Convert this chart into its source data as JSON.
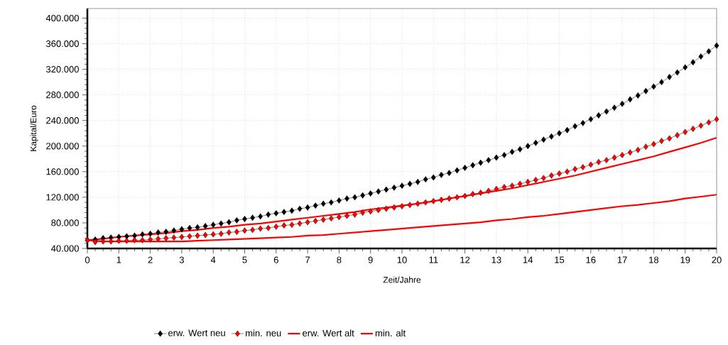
{
  "chart_data": {
    "type": "line",
    "xlabel": "Zeit/Jahre",
    "ylabel": "Kapital/Euro",
    "xlim": [
      0,
      20
    ],
    "ylim": [
      40000,
      415000
    ],
    "xticks": [
      0,
      1,
      2,
      3,
      4,
      5,
      6,
      7,
      8,
      9,
      10,
      11,
      12,
      13,
      14,
      15,
      16,
      17,
      18,
      19,
      20
    ],
    "yticks": [
      {
        "value": 40000,
        "label": "40.000"
      },
      {
        "value": 80000,
        "label": "80.000"
      },
      {
        "value": 120000,
        "label": "120.000"
      },
      {
        "value": 160000,
        "label": "160.000"
      },
      {
        "value": 200000,
        "label": "200.000"
      },
      {
        "value": 240000,
        "label": "240.000"
      },
      {
        "value": 280000,
        "label": "280.000"
      },
      {
        "value": 320000,
        "label": "320.000"
      },
      {
        "value": 360000,
        "label": "360.000"
      },
      {
        "value": 400000,
        "label": "400.000"
      }
    ],
    "grid": true,
    "legend": "bottom",
    "series": [
      {
        "name": "erw. Wert neu",
        "color": "#000000",
        "marker": "diamond",
        "x": [
          0,
          0.25,
          0.5,
          0.75,
          1,
          1.25,
          1.5,
          1.75,
          2,
          2.25,
          2.5,
          2.75,
          3,
          3.25,
          3.5,
          3.75,
          4,
          4.25,
          4.5,
          4.75,
          5,
          5.25,
          5.5,
          5.75,
          6,
          6.25,
          6.5,
          6.75,
          7,
          7.25,
          7.5,
          7.75,
          8,
          8.25,
          8.5,
          8.75,
          9,
          9.25,
          9.5,
          9.75,
          10,
          10.25,
          10.5,
          10.75,
          11,
          11.25,
          11.5,
          11.75,
          12,
          12.25,
          12.5,
          12.75,
          13,
          13.25,
          13.5,
          13.75,
          14,
          14.25,
          14.5,
          14.75,
          15,
          15.25,
          15.5,
          15.75,
          16,
          16.25,
          16.5,
          16.75,
          17,
          17.25,
          17.5,
          17.75,
          18,
          18.25,
          18.5,
          18.75,
          19,
          19.25,
          19.5,
          19.75,
          20
        ],
        "values": [
          53000,
          54000,
          56000,
          57000,
          58000,
          59000,
          60000,
          62000,
          63000,
          65000,
          66000,
          68000,
          70000,
          72000,
          73000,
          75000,
          77000,
          79000,
          81000,
          84000,
          86000,
          88000,
          90000,
          93000,
          95000,
          97000,
          99000,
          102000,
          104000,
          107000,
          110000,
          112000,
          115000,
          118000,
          120000,
          123000,
          126000,
          129000,
          132000,
          135000,
          138000,
          141000,
          144000,
          148000,
          151000,
          155000,
          158000,
          162000,
          166000,
          170000,
          174000,
          178000,
          182000,
          186000,
          191000,
          195000,
          200000,
          205000,
          210000,
          215000,
          220000,
          225000,
          231000,
          236000,
          242000,
          248000,
          254000,
          260000,
          266000,
          273000,
          279000,
          286000,
          293000,
          300000,
          308000,
          315000,
          323000,
          331000,
          340000,
          348000,
          357000
        ]
      },
      {
        "name": "min. neu",
        "color": "#ff0000",
        "marker": "diamond",
        "x": [
          0,
          0.25,
          0.5,
          0.75,
          1,
          1.25,
          1.5,
          1.75,
          2,
          2.25,
          2.5,
          2.75,
          3,
          3.25,
          3.5,
          3.75,
          4,
          4.25,
          4.5,
          4.75,
          5,
          5.25,
          5.5,
          5.75,
          6,
          6.25,
          6.5,
          6.75,
          7,
          7.25,
          7.5,
          7.75,
          8,
          8.25,
          8.5,
          8.75,
          9,
          9.25,
          9.5,
          9.75,
          10,
          10.25,
          10.5,
          10.75,
          11,
          11.25,
          11.5,
          11.75,
          12,
          12.25,
          12.5,
          12.75,
          13,
          13.25,
          13.5,
          13.75,
          14,
          14.25,
          14.5,
          14.75,
          15,
          15.25,
          15.5,
          15.75,
          16,
          16.25,
          16.5,
          16.75,
          17,
          17.25,
          17.5,
          17.75,
          18,
          18.25,
          18.5,
          18.75,
          19,
          19.25,
          19.5,
          19.75,
          20
        ],
        "values": [
          53000,
          50000,
          51000,
          51000,
          52000,
          52000,
          53000,
          53000,
          54000,
          55000,
          56000,
          57000,
          58000,
          59000,
          60000,
          61000,
          62000,
          63000,
          65000,
          66000,
          68000,
          69000,
          71000,
          72000,
          74000,
          76000,
          77000,
          79000,
          81000,
          83000,
          85000,
          87000,
          89000,
          91000,
          93000,
          96000,
          98000,
          100000,
          102000,
          104000,
          106000,
          108000,
          110000,
          112000,
          114000,
          116000,
          118000,
          120000,
          122000,
          125000,
          127000,
          130000,
          133000,
          136000,
          138000,
          141000,
          144000,
          147000,
          150000,
          154000,
          157000,
          160000,
          164000,
          167000,
          171000,
          175000,
          178000,
          182000,
          186000,
          190000,
          194000,
          199000,
          203000,
          208000,
          212000,
          217000,
          222000,
          227000,
          232000,
          237000,
          242000
        ]
      },
      {
        "name": "erw. Wert alt",
        "color": "#ff0000",
        "marker": "none",
        "x": [
          0,
          0.5,
          1,
          1.5,
          2,
          2.5,
          3,
          3.5,
          4,
          4.5,
          5,
          5.5,
          6,
          6.5,
          7,
          7.5,
          8,
          8.5,
          9,
          9.5,
          10,
          10.5,
          11,
          11.5,
          12,
          12.5,
          13,
          13.5,
          14,
          14.5,
          15,
          15.5,
          16,
          16.5,
          17,
          17.5,
          18,
          18.5,
          19,
          19.5,
          20
        ],
        "values": [
          53000,
          55000,
          58000,
          60000,
          62000,
          64000,
          67000,
          69000,
          72000,
          74000,
          77000,
          79000,
          82000,
          85000,
          88000,
          91000,
          94000,
          97000,
          101000,
          104000,
          107000,
          110000,
          114000,
          118000,
          122000,
          126000,
          130000,
          134000,
          139000,
          144000,
          149000,
          154000,
          160000,
          166000,
          172000,
          178000,
          184000,
          191000,
          198000,
          205000,
          213000
        ]
      },
      {
        "name": "min. alt",
        "color": "#ff0000",
        "marker": "none",
        "x": [
          0,
          0.5,
          1,
          1.5,
          2,
          2.5,
          3,
          3.5,
          4,
          4.5,
          5,
          5.5,
          6,
          6.5,
          7,
          7.5,
          8,
          8.5,
          9,
          9.5,
          10,
          10.5,
          11,
          11.5,
          12,
          12.5,
          13,
          13.5,
          14,
          14.5,
          15,
          15.5,
          16,
          16.5,
          17,
          17.5,
          18,
          18.5,
          19,
          19.5,
          20
        ],
        "values": [
          53000,
          51000,
          51000,
          51000,
          51000,
          51000,
          51000,
          52000,
          53000,
          54000,
          55000,
          56000,
          57000,
          58000,
          60000,
          61000,
          63000,
          65000,
          67000,
          69000,
          71000,
          73000,
          75000,
          77000,
          79000,
          81000,
          84000,
          86000,
          89000,
          91000,
          94000,
          97000,
          100000,
          103000,
          106000,
          108000,
          111000,
          114000,
          118000,
          121000,
          124000
        ]
      }
    ]
  }
}
